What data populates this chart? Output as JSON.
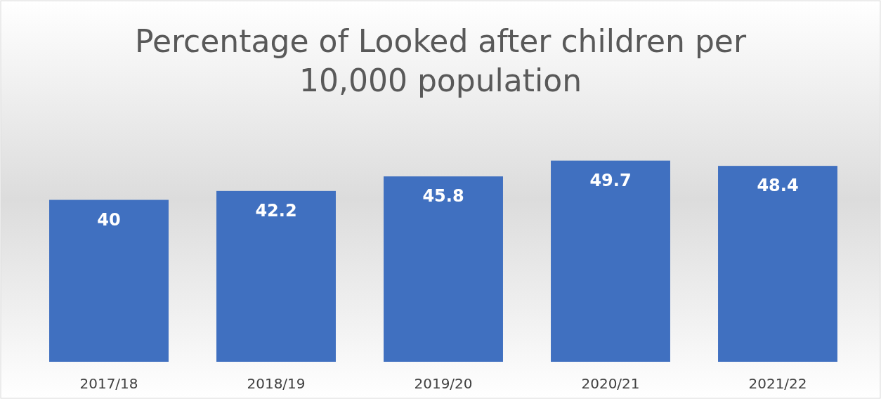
{
  "chart_data": {
    "type": "bar",
    "title": "Percentage of Looked after children per 10,000 population",
    "categories": [
      "2017/18",
      "2018/19",
      "2019/20",
      "2020/21",
      "2021/22"
    ],
    "values": [
      40,
      42.2,
      45.8,
      49.7,
      48.4
    ],
    "color": "#4070c0",
    "data_labels": true
  }
}
